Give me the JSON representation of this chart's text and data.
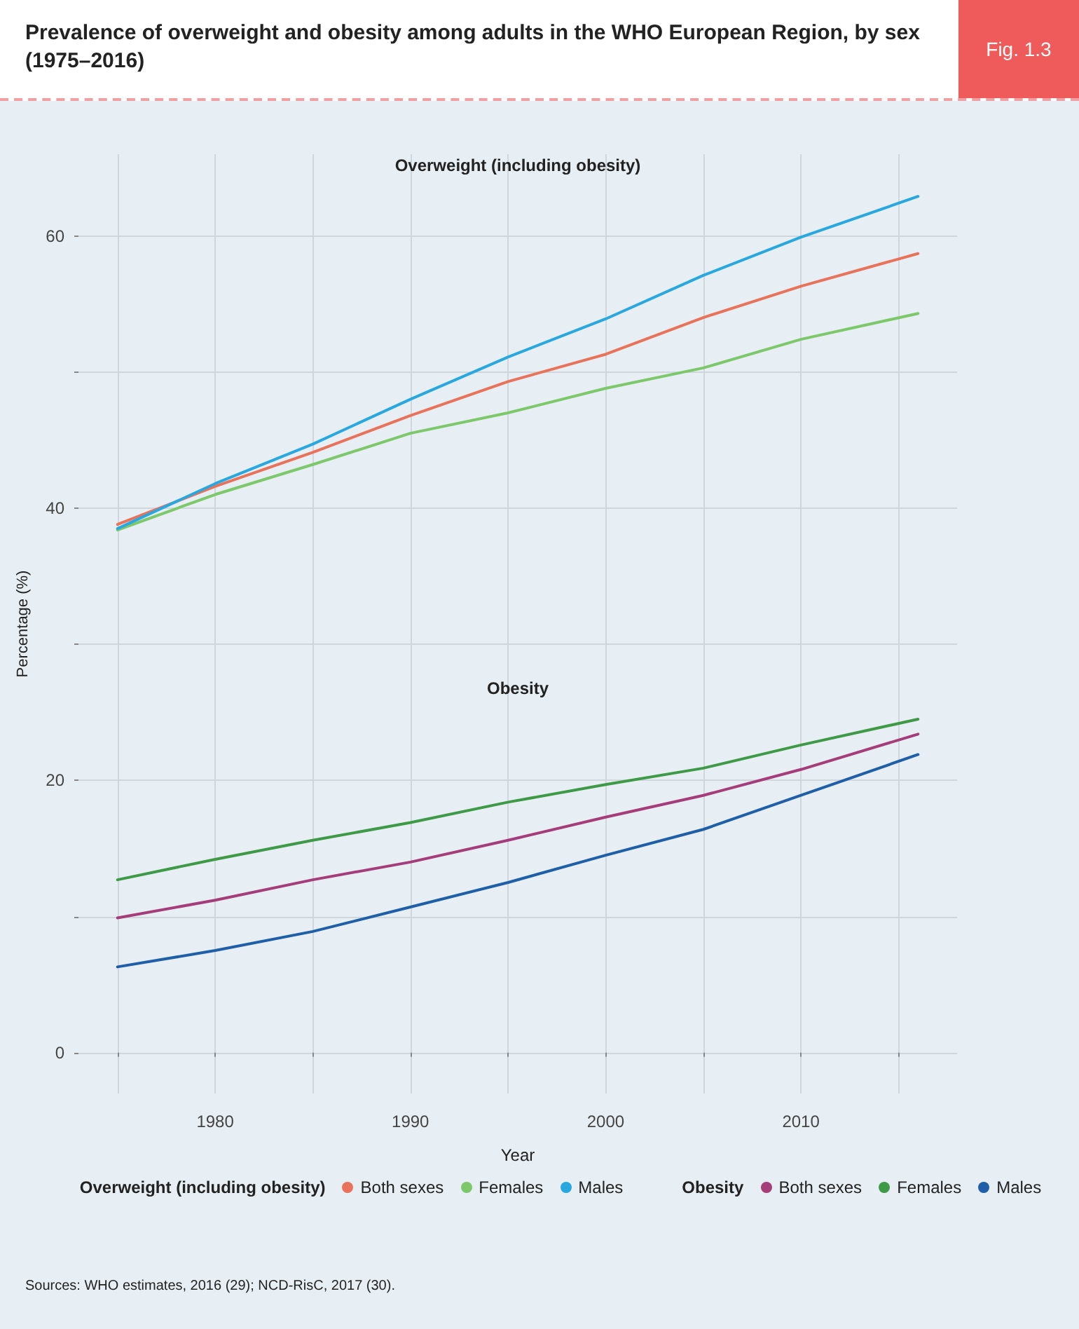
{
  "chart_data": {
    "type": "line",
    "title": "Prevalence of overweight and obesity among adults in the WHO European Region, by sex (1975–2016)",
    "xlabel": "Year",
    "ylabel": "Percentage (%)",
    "x": [
      1975,
      1980,
      1985,
      1990,
      1995,
      2000,
      2005,
      2010,
      2016
    ],
    "series": [
      {
        "name": "Both sexes",
        "color": "#e8735a",
        "values": [
          38.8,
          41.6,
          44.1,
          46.8,
          49.3,
          51.3,
          54.0,
          56.3,
          58.7
        ]
      },
      {
        "name": "Females",
        "color": "#7cc86a",
        "values": [
          38.4,
          41.0,
          43.2,
          45.5,
          47.0,
          48.8,
          50.3,
          52.4,
          54.3
        ]
      },
      {
        "name": "Males",
        "color": "#29a8e0",
        "values": [
          38.5,
          41.8,
          44.7,
          48.0,
          51.1,
          53.9,
          57.1,
          59.9,
          62.9
        ]
      },
      {
        "name": "Both sexes",
        "color": "#a43d7a",
        "values": [
          9.9,
          11.2,
          12.7,
          14.0,
          15.6,
          17.3,
          18.9,
          20.8,
          23.4
        ]
      },
      {
        "name": "Females",
        "color": "#3f9a48",
        "values": [
          12.7,
          14.2,
          15.6,
          16.9,
          18.4,
          19.7,
          20.9,
          22.6,
          24.5
        ]
      },
      {
        "name": "Males",
        "color": "#1f5fa8",
        "values": [
          6.3,
          7.5,
          8.9,
          10.7,
          12.5,
          14.5,
          16.4,
          18.9,
          21.9
        ]
      }
    ],
    "xlim": [
      1973,
      2018
    ],
    "xticks": [
      {
        "value": 1975,
        "label": null
      },
      1980,
      {
        "value": 1985,
        "label": null
      },
      1990,
      {
        "value": 1995,
        "label": null
      },
      2000,
      {
        "value": 2005,
        "label": null
      },
      2010,
      {
        "value": 2015,
        "label": null
      }
    ],
    "ylim": [
      -3,
      66
    ],
    "yticks": [
      0,
      {
        "value": 10,
        "label": null
      },
      20,
      {
        "value": 30,
        "label": null
      },
      40,
      {
        "value": 50,
        "label": null
      },
      60
    ],
    "annotations": [
      "Overweight (including obesity)",
      "Obesity",
      "Fig. 1.3",
      "Sources: WHO estimates, 2016 (29); NCD-RisC, 2017 (30)."
    ],
    "grid": true,
    "legend": "bottom",
    "marker": "none",
    "line_style": "solid"
  }
}
